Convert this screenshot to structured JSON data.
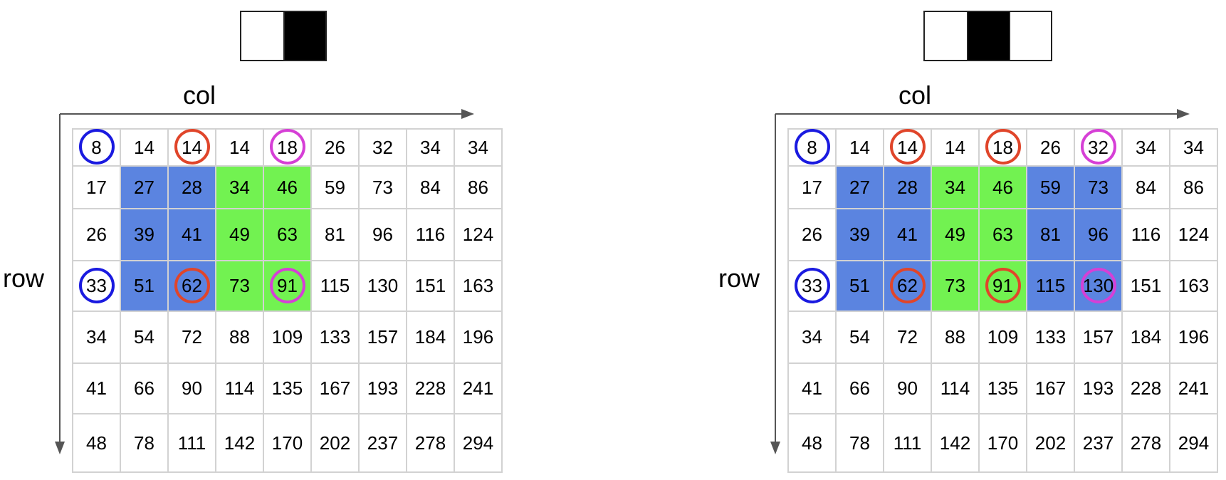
{
  "colors": {
    "blue_fill": "#5b84e0",
    "green_fill": "#72f251",
    "ring_blue": "#1a1ae0",
    "ring_red": "#e0452a",
    "ring_magenta": "#d63fd6",
    "grid_line": "#d2d2d2"
  },
  "panels": [
    {
      "haar_pattern": [
        "white",
        "black"
      ],
      "col_label": "col",
      "row_label": "row",
      "matrix": [
        [
          "8",
          "14",
          "14",
          "14",
          "18",
          "26",
          "32",
          "34",
          "34"
        ],
        [
          "17",
          "27",
          "28",
          "34",
          "46",
          "59",
          "73",
          "84",
          "86"
        ],
        [
          "26",
          "39",
          "41",
          "49",
          "63",
          "81",
          "96",
          "116",
          "124"
        ],
        [
          "33",
          "51",
          "62",
          "73",
          "91",
          "115",
          "130",
          "151",
          "163"
        ],
        [
          "34",
          "54",
          "72",
          "88",
          "109",
          "133",
          "157",
          "184",
          "196"
        ],
        [
          "41",
          "66",
          "90",
          "114",
          "135",
          "167",
          "193",
          "228",
          "241"
        ],
        [
          "48",
          "78",
          "111",
          "142",
          "170",
          "202",
          "237",
          "278",
          "294"
        ]
      ],
      "blue_region": {
        "rows": [
          1,
          3
        ],
        "cols": [
          1,
          2
        ]
      },
      "green_region": {
        "rows": [
          1,
          3
        ],
        "cols": [
          3,
          4
        ]
      },
      "circles": [
        {
          "row": 0,
          "col": 0,
          "color": "blue"
        },
        {
          "row": 3,
          "col": 0,
          "color": "blue"
        },
        {
          "row": 0,
          "col": 2,
          "color": "red"
        },
        {
          "row": 3,
          "col": 2,
          "color": "red"
        },
        {
          "row": 0,
          "col": 4,
          "color": "magenta"
        },
        {
          "row": 3,
          "col": 4,
          "color": "magenta"
        }
      ]
    },
    {
      "haar_pattern": [
        "white",
        "black",
        "white"
      ],
      "col_label": "col",
      "row_label": "row",
      "matrix": [
        [
          "8",
          "14",
          "14",
          "14",
          "18",
          "26",
          "32",
          "34",
          "34"
        ],
        [
          "17",
          "27",
          "28",
          "34",
          "46",
          "59",
          "73",
          "84",
          "86"
        ],
        [
          "26",
          "39",
          "41",
          "49",
          "63",
          "81",
          "96",
          "116",
          "124"
        ],
        [
          "33",
          "51",
          "62",
          "73",
          "91",
          "115",
          "130",
          "151",
          "163"
        ],
        [
          "34",
          "54",
          "72",
          "88",
          "109",
          "133",
          "157",
          "184",
          "196"
        ],
        [
          "41",
          "66",
          "90",
          "114",
          "135",
          "167",
          "193",
          "228",
          "241"
        ],
        [
          "48",
          "78",
          "111",
          "142",
          "170",
          "202",
          "237",
          "278",
          "294"
        ]
      ],
      "blue_region": {
        "rows": [
          1,
          3
        ],
        "cols": [
          1,
          2
        ]
      },
      "green_region": {
        "rows": [
          1,
          3
        ],
        "cols": [
          3,
          4
        ]
      },
      "blue_region_2": {
        "rows": [
          1,
          3
        ],
        "cols": [
          5,
          6
        ]
      },
      "circles": [
        {
          "row": 0,
          "col": 0,
          "color": "blue"
        },
        {
          "row": 3,
          "col": 0,
          "color": "blue"
        },
        {
          "row": 0,
          "col": 2,
          "color": "red"
        },
        {
          "row": 3,
          "col": 2,
          "color": "red"
        },
        {
          "row": 0,
          "col": 4,
          "color": "red"
        },
        {
          "row": 3,
          "col": 4,
          "color": "red"
        },
        {
          "row": 0,
          "col": 6,
          "color": "magenta"
        },
        {
          "row": 3,
          "col": 6,
          "color": "magenta"
        }
      ]
    }
  ]
}
